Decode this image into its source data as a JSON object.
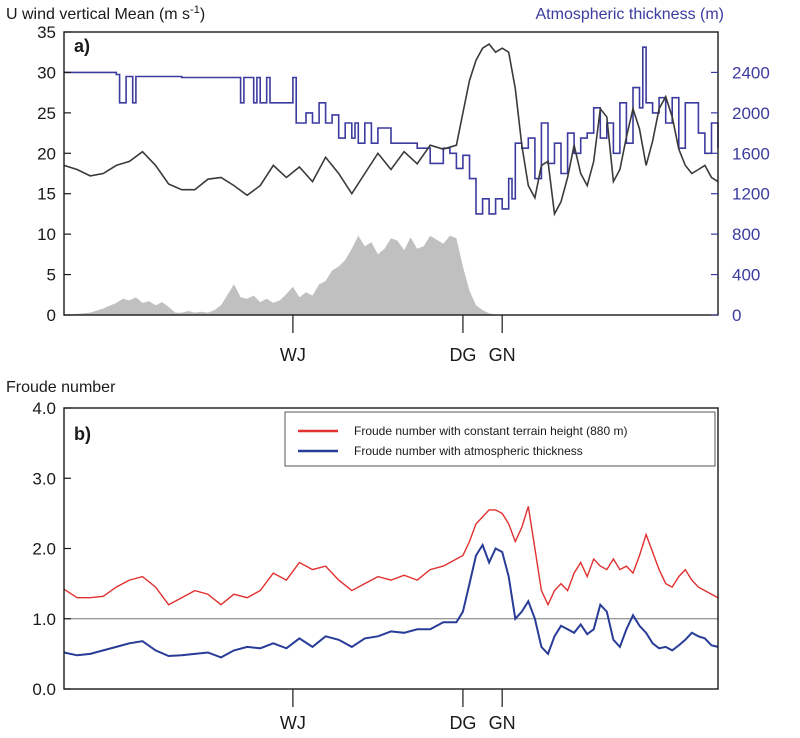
{
  "panel_a": {
    "label": "a)",
    "left_title": "U wind vertical Mean (m s",
    "left_title_sup": "-1",
    "left_title_end": ")",
    "right_title": "Atmospheric thickness (m)",
    "left_ticks": [
      "0",
      "5",
      "10",
      "15",
      "20",
      "25",
      "30",
      "35"
    ],
    "right_ticks": [
      "0",
      "400",
      "800",
      "1200",
      "1600",
      "2000",
      "2400"
    ],
    "locations": [
      "WJ",
      "DG",
      "GN"
    ]
  },
  "panel_b": {
    "label": "b)",
    "title": "Froude number",
    "y_ticks": [
      "0.0",
      "1.0",
      "2.0",
      "3.0",
      "4.0"
    ],
    "locations": [
      "WJ",
      "DG",
      "GN"
    ],
    "legend": [
      "Froude number with constant terrain height (880 m)",
      "Froude number with atmospheric thickness"
    ]
  },
  "colors": {
    "wind": "#3a3a3a",
    "thickness": "#3b3ba0",
    "terrain": "#c0c0c0",
    "froude_const": "#e03030",
    "froude_thick": "#283c98",
    "axis": "#1a1a1a",
    "reference_line": "#777777"
  },
  "chart_data": [
    {
      "type": "line",
      "x_domain": [
        0,
        100
      ],
      "ylim_left": [
        0,
        35
      ],
      "ylim_right": [
        0,
        2800
      ],
      "location_x": {
        "WJ": 35,
        "DG": 61,
        "GN": 67
      },
      "series": [
        {
          "name": "U wind vertical Mean",
          "axis": "left",
          "x": [
            0,
            2,
            4,
            6,
            8,
            10,
            12,
            14,
            16,
            18,
            20,
            22,
            24,
            26,
            28,
            30,
            32,
            34,
            36,
            38,
            40,
            42,
            44,
            46,
            48,
            50,
            52,
            54,
            56,
            58,
            60,
            61,
            62,
            63,
            64,
            65,
            66,
            67,
            68,
            69,
            70,
            71,
            72,
            73,
            74,
            75,
            76,
            77,
            78,
            79,
            80,
            81,
            82,
            83,
            84,
            85,
            86,
            87,
            88,
            89,
            90,
            91,
            92,
            93,
            94,
            95,
            96,
            97,
            98,
            99,
            100
          ],
          "values": [
            18.5,
            18,
            17.2,
            17.5,
            18.5,
            19,
            20.2,
            18.5,
            16.2,
            15.5,
            15.5,
            16.8,
            17,
            16,
            14.8,
            16,
            18.5,
            17,
            18.3,
            16.5,
            19.5,
            17.5,
            15,
            17.5,
            20,
            18,
            20.2,
            18.7,
            21,
            20.5,
            21,
            25,
            29,
            31.5,
            33,
            33.5,
            32.5,
            33,
            32.5,
            28,
            21,
            16,
            14.5,
            18.5,
            19,
            12.5,
            14,
            17,
            21,
            17.5,
            16,
            19,
            25.5,
            24.5,
            16.5,
            18,
            22,
            25.5,
            23,
            18.5,
            21.5,
            25.5,
            27,
            24.5,
            20.5,
            18.5,
            17.5,
            18,
            18.5,
            17,
            16.5
          ]
        },
        {
          "name": "Atmospheric thickness",
          "axis": "right",
          "x": [
            0,
            8,
            8.5,
            9.5,
            10.5,
            11,
            16,
            18,
            27,
            27.5,
            29,
            29.5,
            30,
            31,
            31.5,
            35,
            35.5,
            37,
            38,
            39,
            40,
            41,
            42,
            43,
            44,
            44.5,
            45,
            46,
            47,
            48,
            50,
            52,
            54,
            56,
            58,
            59,
            60,
            61,
            62,
            63,
            64,
            65,
            66,
            67,
            68,
            68.5,
            69,
            70,
            71,
            72,
            73,
            74,
            75,
            76,
            77,
            78,
            79,
            80,
            81,
            82,
            83,
            84,
            85,
            86,
            87,
            88,
            88.5,
            89,
            90,
            91,
            92,
            93,
            94,
            95,
            96,
            97,
            98,
            99,
            100
          ],
          "values": [
            2400,
            2380,
            2100,
            2360,
            2100,
            2360,
            2360,
            2350,
            2100,
            2350,
            2100,
            2350,
            2100,
            2350,
            2100,
            2350,
            1900,
            2000,
            1900,
            2100,
            1900,
            1980,
            1750,
            1900,
            1750,
            1900,
            1700,
            1900,
            1700,
            1850,
            1700,
            1700,
            1650,
            1500,
            1650,
            1600,
            1450,
            1580,
            1350,
            1000,
            1150,
            1000,
            1150,
            1050,
            1350,
            1150,
            1700,
            1650,
            1750,
            1350,
            1900,
            1500,
            1700,
            1400,
            1800,
            1600,
            1750,
            1800,
            2050,
            1750,
            1900,
            1600,
            2100,
            1700,
            2250,
            2050,
            2650,
            2100,
            2000,
            2150,
            1900,
            2150,
            1650,
            2100,
            2100,
            1800,
            1600,
            1900,
            1650
          ]
        },
        {
          "name": "Terrain",
          "axis": "left",
          "kind": "area",
          "x": [
            0,
            4,
            6,
            8,
            9,
            10,
            11,
            12,
            13,
            14,
            15,
            16,
            17,
            18,
            19,
            20,
            21,
            22,
            23,
            24,
            25,
            26,
            27,
            28,
            29,
            30,
            31,
            32,
            33,
            34,
            35,
            36,
            37,
            38,
            39,
            40,
            41,
            42,
            43,
            44,
            45,
            46,
            47,
            48,
            49,
            50,
            51,
            52,
            53,
            54,
            55,
            56,
            57,
            58,
            59,
            60,
            61,
            62,
            63,
            64,
            65,
            66,
            67,
            100
          ],
          "values": [
            0,
            0.3,
            0.8,
            1.5,
            2,
            1.8,
            2.2,
            1.5,
            1.7,
            1.2,
            1.6,
            1,
            0.3,
            0.3,
            0.5,
            0.3,
            0.4,
            0.3,
            0.6,
            1.2,
            2.5,
            3.8,
            2.2,
            2,
            2.4,
            1.6,
            2,
            1.5,
            1.8,
            2.6,
            3.5,
            2.2,
            2.8,
            2.4,
            3.8,
            4.2,
            5.5,
            6,
            6.8,
            8.2,
            9.8,
            8.5,
            9,
            7.5,
            8.2,
            9.5,
            9.2,
            8,
            9.6,
            8.2,
            8.5,
            9.8,
            9.3,
            8.8,
            9.8,
            9.5,
            6,
            3,
            1.2,
            0.6,
            0.2,
            0.05,
            0,
            0
          ]
        }
      ]
    },
    {
      "type": "line",
      "x_domain": [
        0,
        100
      ],
      "ylim": [
        0,
        4
      ],
      "reference_y": 1.0,
      "location_x": {
        "WJ": 35,
        "DG": 61,
        "GN": 67
      },
      "series": [
        {
          "name": "Froude number with constant terrain height (880 m)",
          "x": [
            0,
            2,
            4,
            6,
            8,
            10,
            12,
            14,
            16,
            18,
            20,
            22,
            24,
            26,
            28,
            30,
            32,
            34,
            36,
            38,
            40,
            42,
            44,
            46,
            48,
            50,
            52,
            54,
            56,
            58,
            60,
            61,
            62,
            63,
            64,
            65,
            66,
            67,
            68,
            69,
            70,
            71,
            72,
            73,
            74,
            75,
            76,
            77,
            78,
            79,
            80,
            81,
            82,
            83,
            84,
            85,
            86,
            87,
            88,
            89,
            90,
            91,
            92,
            93,
            94,
            95,
            96,
            97,
            98,
            99,
            100
          ],
          "values": [
            1.42,
            1.3,
            1.3,
            1.32,
            1.45,
            1.55,
            1.6,
            1.45,
            1.2,
            1.3,
            1.4,
            1.35,
            1.2,
            1.35,
            1.3,
            1.4,
            1.65,
            1.55,
            1.8,
            1.7,
            1.75,
            1.55,
            1.4,
            1.5,
            1.6,
            1.55,
            1.62,
            1.55,
            1.7,
            1.75,
            1.85,
            1.9,
            2.1,
            2.35,
            2.45,
            2.55,
            2.55,
            2.5,
            2.35,
            2.1,
            2.3,
            2.6,
            2.0,
            1.4,
            1.2,
            1.4,
            1.5,
            1.4,
            1.65,
            1.8,
            1.6,
            1.85,
            1.75,
            1.7,
            1.85,
            1.7,
            1.75,
            1.65,
            1.9,
            2.2,
            1.95,
            1.7,
            1.5,
            1.45,
            1.6,
            1.7,
            1.55,
            1.45,
            1.4,
            1.35,
            1.3
          ]
        },
        {
          "name": "Froude number with atmospheric thickness",
          "x": [
            0,
            2,
            4,
            6,
            8,
            10,
            12,
            14,
            16,
            18,
            20,
            22,
            24,
            26,
            28,
            30,
            32,
            34,
            36,
            38,
            40,
            42,
            44,
            46,
            48,
            50,
            52,
            54,
            56,
            58,
            60,
            61,
            62,
            63,
            64,
            65,
            66,
            67,
            68,
            69,
            70,
            71,
            72,
            73,
            74,
            75,
            76,
            77,
            78,
            79,
            80,
            81,
            82,
            83,
            84,
            85,
            86,
            87,
            88,
            89,
            90,
            91,
            92,
            93,
            94,
            95,
            96,
            97,
            98,
            99,
            100
          ],
          "values": [
            0.52,
            0.48,
            0.5,
            0.55,
            0.6,
            0.65,
            0.68,
            0.55,
            0.47,
            0.48,
            0.5,
            0.52,
            0.45,
            0.55,
            0.6,
            0.58,
            0.65,
            0.58,
            0.72,
            0.6,
            0.75,
            0.7,
            0.6,
            0.72,
            0.75,
            0.82,
            0.8,
            0.85,
            0.85,
            0.95,
            0.95,
            1.1,
            1.5,
            1.9,
            2.05,
            1.8,
            2.0,
            1.95,
            1.6,
            1.0,
            1.1,
            1.25,
            1.0,
            0.6,
            0.5,
            0.75,
            0.9,
            0.85,
            0.8,
            0.92,
            0.78,
            0.85,
            1.2,
            1.1,
            0.7,
            0.6,
            0.85,
            1.05,
            0.9,
            0.8,
            0.65,
            0.58,
            0.6,
            0.55,
            0.62,
            0.7,
            0.8,
            0.75,
            0.72,
            0.62,
            0.6
          ]
        }
      ]
    }
  ]
}
